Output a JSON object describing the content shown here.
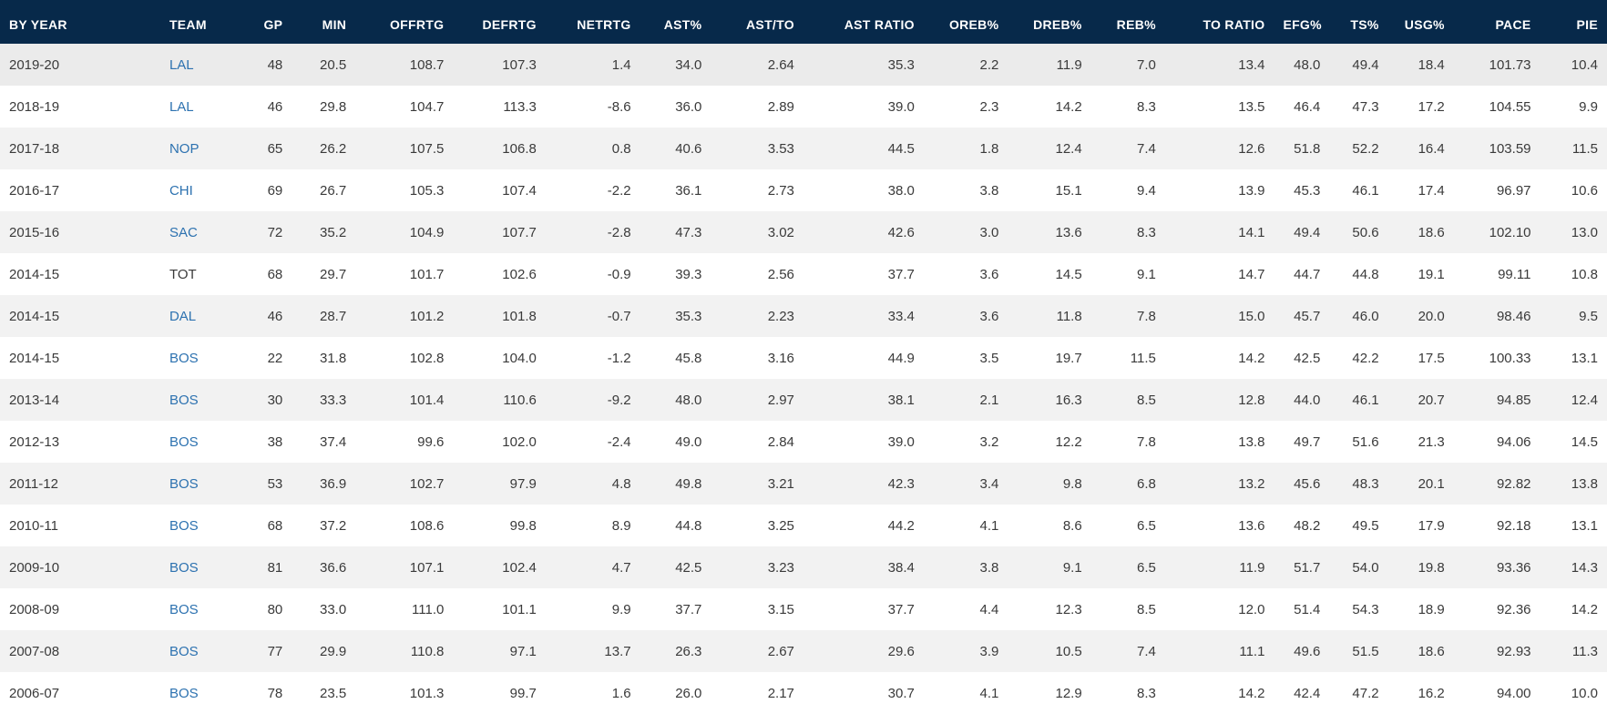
{
  "colors": {
    "header_bg": "#07294a",
    "header_text": "#ffffff",
    "row_alt": "#f2f2f2",
    "link": "#2d72b0",
    "cell_text": "#3a3a3a"
  },
  "columns": [
    "BY YEAR",
    "TEAM",
    "GP",
    "MIN",
    "OFFRTG",
    "DEFRTG",
    "NETRTG",
    "AST%",
    "AST/TO",
    "AST RATIO",
    "OREB%",
    "DREB%",
    "REB%",
    "TO RATIO",
    "EFG%",
    "TS%",
    "USG%",
    "PACE",
    "PIE"
  ],
  "rows": [
    {
      "year": "2019-20",
      "team": "LAL",
      "link": true,
      "stats": [
        "48",
        "20.5",
        "108.7",
        "107.3",
        "1.4",
        "34.0",
        "2.64",
        "35.3",
        "2.2",
        "11.9",
        "7.0",
        "13.4",
        "48.0",
        "49.4",
        "18.4",
        "101.73",
        "10.4"
      ]
    },
    {
      "year": "2018-19",
      "team": "LAL",
      "link": true,
      "stats": [
        "46",
        "29.8",
        "104.7",
        "113.3",
        "-8.6",
        "36.0",
        "2.89",
        "39.0",
        "2.3",
        "14.2",
        "8.3",
        "13.5",
        "46.4",
        "47.3",
        "17.2",
        "104.55",
        "9.9"
      ]
    },
    {
      "year": "2017-18",
      "team": "NOP",
      "link": true,
      "stats": [
        "65",
        "26.2",
        "107.5",
        "106.8",
        "0.8",
        "40.6",
        "3.53",
        "44.5",
        "1.8",
        "12.4",
        "7.4",
        "12.6",
        "51.8",
        "52.2",
        "16.4",
        "103.59",
        "11.5"
      ]
    },
    {
      "year": "2016-17",
      "team": "CHI",
      "link": true,
      "stats": [
        "69",
        "26.7",
        "105.3",
        "107.4",
        "-2.2",
        "36.1",
        "2.73",
        "38.0",
        "3.8",
        "15.1",
        "9.4",
        "13.9",
        "45.3",
        "46.1",
        "17.4",
        "96.97",
        "10.6"
      ]
    },
    {
      "year": "2015-16",
      "team": "SAC",
      "link": true,
      "stats": [
        "72",
        "35.2",
        "104.9",
        "107.7",
        "-2.8",
        "47.3",
        "3.02",
        "42.6",
        "3.0",
        "13.6",
        "8.3",
        "14.1",
        "49.4",
        "50.6",
        "18.6",
        "102.10",
        "13.0"
      ]
    },
    {
      "year": "2014-15",
      "team": "TOT",
      "link": false,
      "stats": [
        "68",
        "29.7",
        "101.7",
        "102.6",
        "-0.9",
        "39.3",
        "2.56",
        "37.7",
        "3.6",
        "14.5",
        "9.1",
        "14.7",
        "44.7",
        "44.8",
        "19.1",
        "99.11",
        "10.8"
      ]
    },
    {
      "year": "2014-15",
      "team": "DAL",
      "link": true,
      "stats": [
        "46",
        "28.7",
        "101.2",
        "101.8",
        "-0.7",
        "35.3",
        "2.23",
        "33.4",
        "3.6",
        "11.8",
        "7.8",
        "15.0",
        "45.7",
        "46.0",
        "20.0",
        "98.46",
        "9.5"
      ]
    },
    {
      "year": "2014-15",
      "team": "BOS",
      "link": true,
      "stats": [
        "22",
        "31.8",
        "102.8",
        "104.0",
        "-1.2",
        "45.8",
        "3.16",
        "44.9",
        "3.5",
        "19.7",
        "11.5",
        "14.2",
        "42.5",
        "42.2",
        "17.5",
        "100.33",
        "13.1"
      ]
    },
    {
      "year": "2013-14",
      "team": "BOS",
      "link": true,
      "stats": [
        "30",
        "33.3",
        "101.4",
        "110.6",
        "-9.2",
        "48.0",
        "2.97",
        "38.1",
        "2.1",
        "16.3",
        "8.5",
        "12.8",
        "44.0",
        "46.1",
        "20.7",
        "94.85",
        "12.4"
      ]
    },
    {
      "year": "2012-13",
      "team": "BOS",
      "link": true,
      "stats": [
        "38",
        "37.4",
        "99.6",
        "102.0",
        "-2.4",
        "49.0",
        "2.84",
        "39.0",
        "3.2",
        "12.2",
        "7.8",
        "13.8",
        "49.7",
        "51.6",
        "21.3",
        "94.06",
        "14.5"
      ]
    },
    {
      "year": "2011-12",
      "team": "BOS",
      "link": true,
      "stats": [
        "53",
        "36.9",
        "102.7",
        "97.9",
        "4.8",
        "49.8",
        "3.21",
        "42.3",
        "3.4",
        "9.8",
        "6.8",
        "13.2",
        "45.6",
        "48.3",
        "20.1",
        "92.82",
        "13.8"
      ]
    },
    {
      "year": "2010-11",
      "team": "BOS",
      "link": true,
      "stats": [
        "68",
        "37.2",
        "108.6",
        "99.8",
        "8.9",
        "44.8",
        "3.25",
        "44.2",
        "4.1",
        "8.6",
        "6.5",
        "13.6",
        "48.2",
        "49.5",
        "17.9",
        "92.18",
        "13.1"
      ]
    },
    {
      "year": "2009-10",
      "team": "BOS",
      "link": true,
      "stats": [
        "81",
        "36.6",
        "107.1",
        "102.4",
        "4.7",
        "42.5",
        "3.23",
        "38.4",
        "3.8",
        "9.1",
        "6.5",
        "11.9",
        "51.7",
        "54.0",
        "19.8",
        "93.36",
        "14.3"
      ]
    },
    {
      "year": "2008-09",
      "team": "BOS",
      "link": true,
      "stats": [
        "80",
        "33.0",
        "111.0",
        "101.1",
        "9.9",
        "37.7",
        "3.15",
        "37.7",
        "4.4",
        "12.3",
        "8.5",
        "12.0",
        "51.4",
        "54.3",
        "18.9",
        "92.36",
        "14.2"
      ]
    },
    {
      "year": "2007-08",
      "team": "BOS",
      "link": true,
      "stats": [
        "77",
        "29.9",
        "110.8",
        "97.1",
        "13.7",
        "26.3",
        "2.67",
        "29.6",
        "3.9",
        "10.5",
        "7.4",
        "11.1",
        "49.6",
        "51.5",
        "18.6",
        "92.93",
        "11.3"
      ]
    },
    {
      "year": "2006-07",
      "team": "BOS",
      "link": true,
      "stats": [
        "78",
        "23.5",
        "101.3",
        "99.7",
        "1.6",
        "26.0",
        "2.17",
        "30.7",
        "4.1",
        "12.9",
        "8.3",
        "14.2",
        "42.4",
        "47.2",
        "16.2",
        "94.00",
        "10.0"
      ]
    }
  ]
}
